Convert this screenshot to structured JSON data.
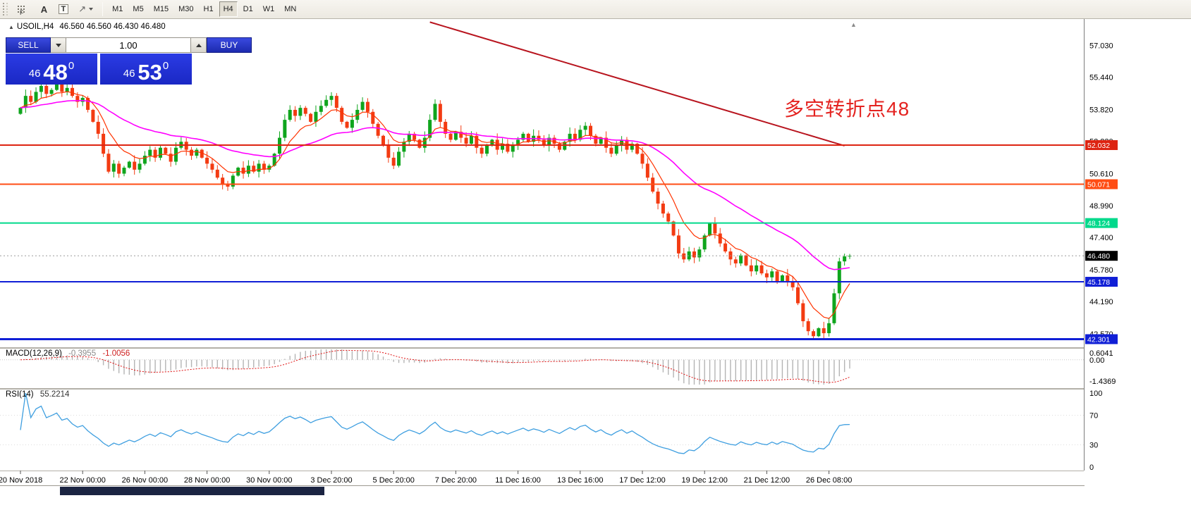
{
  "colors": {
    "up_candle": "#0fa51d",
    "down_candle": "#f33b12",
    "ma_fast": "#ff3300",
    "ma_slow": "#ff00ff",
    "trendline": "#b8141e",
    "macd_bars": "#b4b4b4",
    "macd_signal": "#e01010",
    "rsi_line": "#3f9fe0",
    "annotation": "#e42320",
    "current_badge": "#000000"
  },
  "toolbar": {
    "icons": {
      "f": "F",
      "a": "A",
      "t": "T",
      "arrow": "↗"
    },
    "timeframes": [
      "M1",
      "M5",
      "M15",
      "M30",
      "H1",
      "H4",
      "D1",
      "W1",
      "MN"
    ],
    "active_timeframe": "H4"
  },
  "chart": {
    "header": {
      "marker": "▲",
      "symbol": "USOIL,H4",
      "ohlc": "46.560 46.560 46.430 46.480"
    },
    "scroll_marker": "▲",
    "annotation": {
      "text": "多空转折点48",
      "color": "#e42320"
    },
    "price_axis": {
      "labels": [
        "57.030",
        "55.440",
        "53.820",
        "52.230",
        "50.610",
        "48.990",
        "47.400",
        "45.780",
        "44.190",
        "42.570"
      ]
    },
    "hlines": [
      {
        "label": "52.032",
        "price": 52.032,
        "color": "#dd2412",
        "width": 2
      },
      {
        "label": "50.071",
        "price": 50.071,
        "color": "#ff4d14",
        "width": 2
      },
      {
        "label": "48.124",
        "price": 48.124,
        "color": "#00d98b",
        "width": 2
      },
      {
        "label": "45.178",
        "price": 45.178,
        "color": "#101fd6",
        "width": 2
      },
      {
        "label": "42.301",
        "price": 42.301,
        "color": "#101fd6",
        "width": 3
      }
    ],
    "current_price": {
      "label": "46.480",
      "value": 46.48
    },
    "trendline": {
      "from_index": 79,
      "from_price": 58.2,
      "to_index": 159,
      "to_price": 52.0
    },
    "ma_fast_period": 8,
    "ma_slow_period": 34
  },
  "trade_panel": {
    "sell_label": "SELL",
    "buy_label": "BUY",
    "volume": "1.00",
    "bid": {
      "prefix": "46",
      "big": "48",
      "sup": "0"
    },
    "ask": {
      "prefix": "46",
      "big": "53",
      "sup": "0"
    }
  },
  "macd": {
    "label": "MACD(12,26,9)",
    "value1": "-0.3955",
    "value2": "-1.0056",
    "axis": [
      "0.6041",
      "0.00",
      "-1.4369"
    ],
    "fast": 12,
    "slow": 26,
    "signal": 9,
    "range_max": 0.6041,
    "range_min": -1.4369
  },
  "rsi": {
    "label": "RSI(14)",
    "value": "55.2214",
    "period": 14,
    "axis": [
      "100",
      "70",
      "30",
      "0"
    ]
  },
  "chart_data": {
    "type": "candlestick",
    "symbol": "USOIL",
    "timeframe": "H4",
    "visible_ohlc_last": {
      "open": 46.56,
      "high": 46.56,
      "low": 46.43,
      "close": 46.48
    },
    "first_open": 53.6,
    "closes": [
      53.9,
      54.5,
      54.2,
      54.7,
      55.0,
      54.6,
      54.8,
      55.1,
      54.7,
      54.9,
      54.5,
      54.2,
      54.4,
      53.8,
      53.2,
      52.6,
      51.6,
      50.7,
      51.1,
      50.6,
      50.9,
      51.2,
      50.8,
      51.1,
      51.5,
      51.8,
      51.4,
      51.9,
      51.6,
      51.2,
      51.9,
      52.2,
      51.8,
      51.5,
      51.8,
      51.4,
      51.1,
      50.8,
      50.4,
      50.1,
      49.95,
      50.5,
      50.9,
      50.6,
      51.0,
      50.7,
      51.1,
      50.8,
      51.0,
      51.6,
      52.4,
      53.3,
      53.8,
      53.5,
      53.9,
      53.6,
      53.2,
      53.7,
      54.0,
      54.3,
      54.5,
      53.9,
      53.2,
      52.9,
      53.3,
      53.8,
      54.2,
      53.7,
      53.1,
      52.5,
      52.0,
      51.4,
      51.0,
      51.7,
      52.2,
      52.6,
      52.3,
      51.9,
      52.4,
      53.3,
      54.1,
      53.2,
      52.6,
      52.3,
      52.7,
      52.4,
      52.1,
      52.5,
      51.9,
      51.6,
      52.0,
      52.3,
      51.8,
      52.1,
      51.7,
      52.0,
      52.3,
      52.6,
      52.2,
      52.5,
      52.3,
      52.0,
      52.4,
      52.1,
      51.8,
      52.2,
      52.6,
      52.3,
      52.8,
      53.0,
      52.5,
      52.1,
      52.4,
      51.9,
      51.6,
      52.0,
      52.3,
      51.8,
      52.1,
      51.6,
      51.1,
      50.4,
      49.7,
      49.1,
      48.6,
      48.2,
      47.5,
      46.6,
      46.3,
      46.7,
      46.4,
      46.8,
      47.5,
      48.1,
      47.6,
      47.1,
      46.7,
      46.3,
      46.1,
      46.5,
      46.0,
      45.7,
      46.0,
      45.6,
      45.4,
      45.7,
      45.2,
      45.5,
      45.2,
      44.9,
      44.1,
      43.2,
      42.7,
      42.45,
      42.85,
      42.6,
      43.1,
      44.6,
      46.2,
      46.45,
      46.48
    ],
    "x_labels": [
      {
        "i": 0,
        "t": "20 Nov 2018"
      },
      {
        "i": 12,
        "t": "22 Nov 00:00"
      },
      {
        "i": 24,
        "t": "26 Nov 00:00"
      },
      {
        "i": 36,
        "t": "28 Nov 00:00"
      },
      {
        "i": 48,
        "t": "30 Nov 00:00"
      },
      {
        "i": 60,
        "t": "3 Dec 20:00"
      },
      {
        "i": 72,
        "t": "5 Dec 20:00"
      },
      {
        "i": 84,
        "t": "7 Dec 20:00"
      },
      {
        "i": 96,
        "t": "11 Dec 16:00"
      },
      {
        "i": 108,
        "t": "13 Dec 16:00"
      },
      {
        "i": 120,
        "t": "17 Dec 12:00"
      },
      {
        "i": 132,
        "t": "19 Dec 12:00"
      },
      {
        "i": 144,
        "t": "21 Dec 12:00"
      },
      {
        "i": 156,
        "t": "26 Dec 08:00"
      }
    ]
  }
}
